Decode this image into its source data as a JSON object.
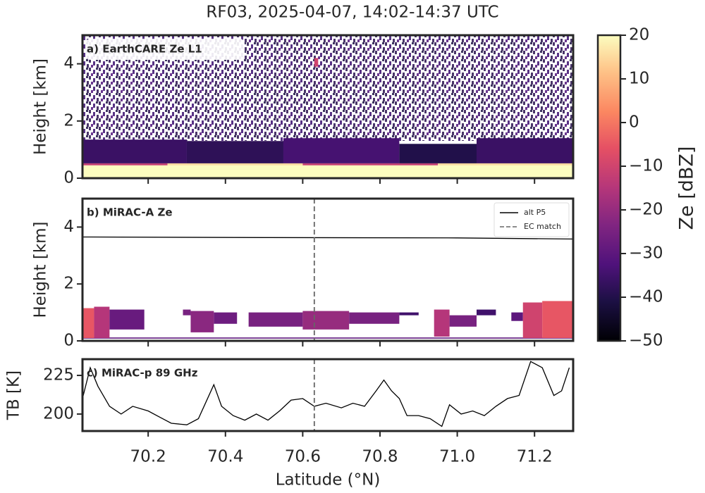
{
  "chart_data": {
    "type": "multi-panel",
    "title": "RF03, 2025-04-07, 14:02-14:37 UTC",
    "x_label": "Latitude (°N)",
    "xlim": [
      70.03,
      71.3
    ],
    "xticks": [
      70.2,
      70.4,
      70.6,
      70.8,
      {
        "value": 71,
        "label": "71.0"
      },
      71.2
    ],
    "colorbar": {
      "label": "Ze [dBZ]",
      "colormap": "magma",
      "lim": [
        -50,
        20
      ],
      "ticks": [
        {
          "value": -50,
          "label": "−50"
        },
        {
          "value": -40,
          "label": "−40"
        },
        {
          "value": -30,
          "label": "−30"
        },
        {
          "value": -20,
          "label": "−20"
        },
        {
          "value": -10,
          "label": "−10"
        },
        0,
        10,
        20
      ]
    },
    "panels": [
      {
        "type": "heatmap",
        "label": "a) EarthCARE Ze L1",
        "y_label": "Height [km]",
        "ylim": [
          0,
          5
        ],
        "yticks": [
          0,
          2,
          4
        ],
        "cells": [
          [
            70.03,
            71.3,
            0,
            0.45,
            20
          ],
          [
            70.03,
            70.25,
            0.45,
            0.52,
            -12
          ],
          [
            70.25,
            70.6,
            0.45,
            0.52,
            15
          ],
          [
            70.6,
            70.95,
            0.45,
            0.52,
            -12
          ],
          [
            70.95,
            71.3,
            0.45,
            0.52,
            15
          ],
          [
            70.03,
            70.3,
            0.52,
            1.35,
            -36
          ],
          [
            70.3,
            70.55,
            0.52,
            1.3,
            -38
          ],
          [
            70.55,
            70.85,
            0.52,
            1.4,
            -34
          ],
          [
            70.85,
            71.05,
            0.52,
            1.2,
            -40
          ],
          [
            71.05,
            71.3,
            0.52,
            1.4,
            -36
          ],
          [
            70.63,
            70.64,
            3.9,
            4.2,
            -10
          ]
        ]
      },
      {
        "type": "heatmap",
        "label": "b) MiRAC-A Ze",
        "y_label": "Height [km]",
        "ylim": [
          0,
          5
        ],
        "yticks": [
          0,
          2,
          4
        ],
        "legend": "upper right",
        "cells": [
          [
            70.03,
            71.3,
            0.08,
            0.12,
            -30
          ],
          [
            70.03,
            70.06,
            0.1,
            1.15,
            -5
          ],
          [
            70.06,
            70.1,
            0.1,
            1.2,
            -15
          ],
          [
            70.1,
            70.19,
            0.4,
            1.1,
            -28
          ],
          [
            70.29,
            70.31,
            0.9,
            1.1,
            -25
          ],
          [
            70.31,
            70.37,
            0.3,
            1.05,
            -22
          ],
          [
            70.37,
            70.43,
            0.6,
            1.0,
            -27
          ],
          [
            70.46,
            70.6,
            0.5,
            1.0,
            -25
          ],
          [
            70.6,
            70.72,
            0.4,
            1.05,
            -20
          ],
          [
            70.72,
            70.85,
            0.6,
            1.0,
            -25
          ],
          [
            70.85,
            70.9,
            0.9,
            1.0,
            -35
          ],
          [
            70.94,
            70.98,
            0.15,
            1.1,
            -15
          ],
          [
            70.98,
            71.05,
            0.5,
            0.9,
            -25
          ],
          [
            71.05,
            71.1,
            0.9,
            1.1,
            -35
          ],
          [
            71.14,
            71.17,
            0.7,
            1.0,
            -30
          ],
          [
            71.17,
            71.22,
            0.1,
            1.35,
            -10
          ],
          [
            71.22,
            71.3,
            0.1,
            1.4,
            -5
          ]
        ],
        "series": [
          {
            "name": "alt P5",
            "color": "#000000",
            "x": [
              70.03,
              70.5,
              71.0,
              71.3
            ],
            "values": [
              3.65,
              3.63,
              3.62,
              3.58
            ]
          },
          {
            "name": "EC match",
            "color": "#666666",
            "style": "dashed",
            "x_value": 70.63
          }
        ]
      },
      {
        "type": "line",
        "label": "c) MiRAC-p 89 GHz",
        "y_label": "TB [K]",
        "ylim": [
          189,
          235.5
        ],
        "yticks": [
          200,
          225
        ],
        "series": [
          {
            "color": "#000000",
            "x": [
              70.03,
              70.05,
              70.07,
              70.1,
              70.13,
              70.16,
              70.2,
              70.23,
              70.26,
              70.3,
              70.33,
              70.35,
              70.37,
              70.39,
              70.42,
              70.45,
              70.48,
              70.51,
              70.54,
              70.57,
              70.6,
              70.63,
              70.66,
              70.7,
              70.73,
              70.76,
              70.79,
              70.81,
              70.83,
              70.85,
              70.87,
              70.9,
              70.93,
              70.96,
              70.98,
              71.01,
              71.04,
              71.07,
              71.1,
              71.13,
              71.16,
              71.19,
              71.22,
              71.25,
              71.27,
              71.29
            ],
            "values": [
              210,
              230,
              218,
              205,
              200,
              205,
              202,
              198,
              194,
              193,
              197,
              208,
              219,
              205,
              199,
              196,
              200,
              196,
              202,
              209,
              210,
              205,
              207,
              204,
              207,
              205,
              215,
              222,
              215,
              210,
              199,
              199,
              197,
              192,
              206,
              200,
              202,
              199,
              205,
              210,
              212,
              234,
              230,
              212,
              215,
              230
            ]
          },
          {
            "color": "#666666",
            "style": "dashed",
            "x_value": 70.63
          }
        ]
      }
    ]
  }
}
